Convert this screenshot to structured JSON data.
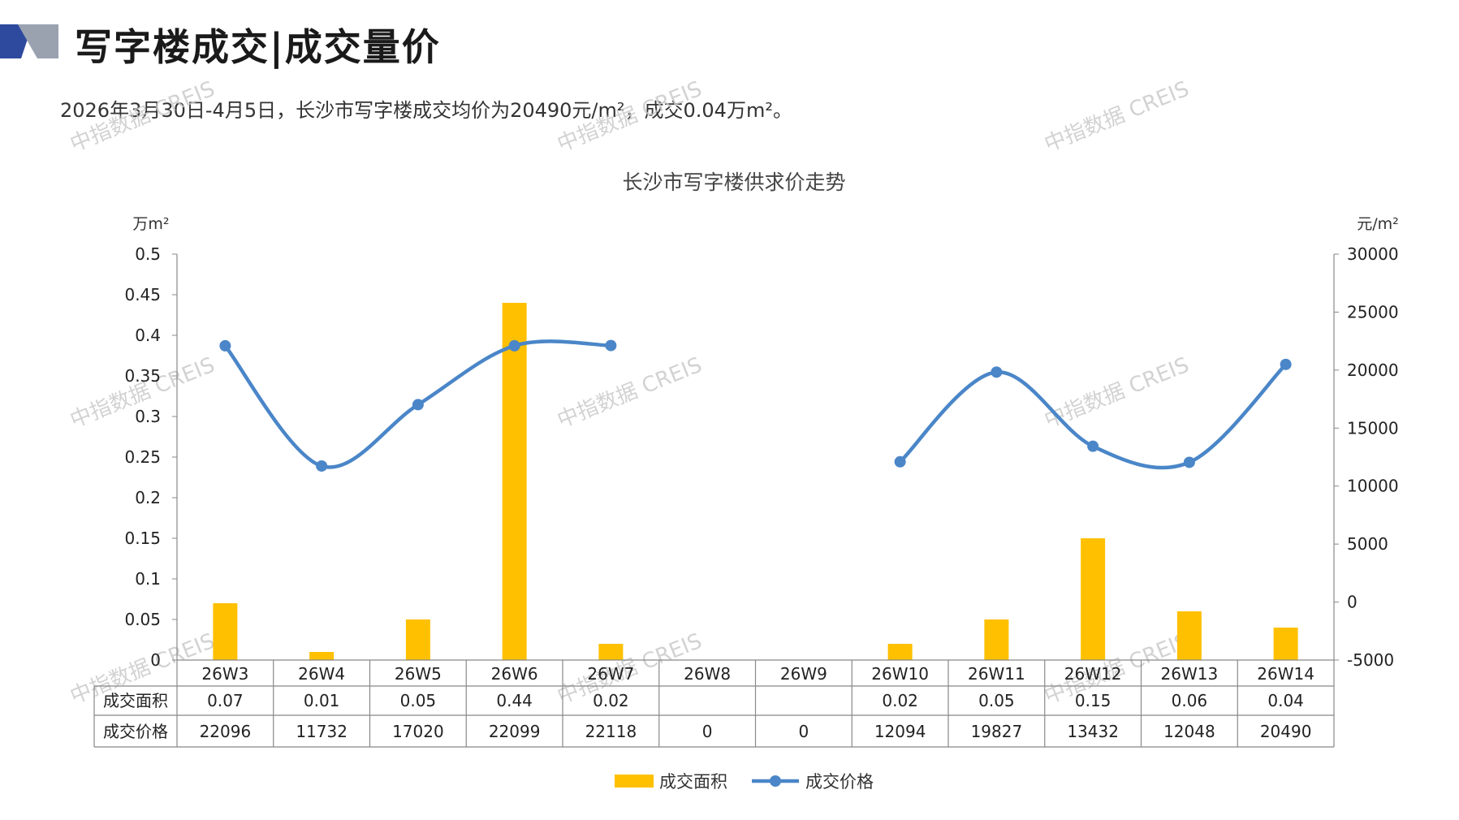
{
  "header": {
    "title": "写字楼成交|成交量价",
    "summary": "2026年3月30日-4月5日，长沙市写字楼成交均价为20490元/m²，成交0.04万m²。"
  },
  "watermark": {
    "text": "中指数据 CREIS"
  },
  "colors": {
    "bar": "#FFC000",
    "line": "#4A86C8",
    "logo_dark": "#2E4A9E",
    "logo_light": "#9AA2B0"
  },
  "chart_data": {
    "type": "bar",
    "title": "长沙市写字楼供求价走势",
    "y_left_unit": "万m²",
    "y_right_unit": "元/m²",
    "y_left_ticks": [
      "0.5",
      "0.45",
      "0.4",
      "0.35",
      "0.3",
      "0.25",
      "0.2",
      "0.15",
      "0.1",
      "0.05",
      "0"
    ],
    "y_right_ticks": [
      "30000",
      "25000",
      "20000",
      "15000",
      "10000",
      "5000",
      "0",
      "-5000"
    ],
    "ylim_left": [
      0,
      0.5
    ],
    "ylim_right": [
      -5000,
      30000
    ],
    "categories": [
      "26W3",
      "26W4",
      "26W5",
      "26W6",
      "26W7",
      "26W8",
      "26W9",
      "26W10",
      "26W11",
      "26W12",
      "26W13",
      "26W14"
    ],
    "series": [
      {
        "name": "成交面积",
        "axis": "left",
        "kind": "bar",
        "values": [
          0.07,
          0.01,
          0.05,
          0.44,
          0.02,
          null,
          null,
          0.02,
          0.05,
          0.15,
          0.06,
          0.04
        ],
        "labels": [
          "0.07",
          "0.01",
          "0.05",
          "0.44",
          "0.02",
          "",
          "",
          "0.02",
          "0.05",
          "0.15",
          "0.06",
          "0.04"
        ]
      },
      {
        "name": "成交价格",
        "axis": "right",
        "kind": "line",
        "values": [
          22096,
          11732,
          17020,
          22099,
          22118,
          0,
          0,
          12094,
          19827,
          13432,
          12048,
          20490
        ],
        "labels": [
          "22096",
          "11732",
          "17020",
          "22099",
          "22118",
          "0",
          "0",
          "12094",
          "19827",
          "13432",
          "12048",
          "20490"
        ],
        "plotted": [
          true,
          true,
          true,
          true,
          true,
          false,
          false,
          true,
          true,
          true,
          true,
          true
        ]
      }
    ],
    "legend": {
      "position": "bottom"
    }
  }
}
